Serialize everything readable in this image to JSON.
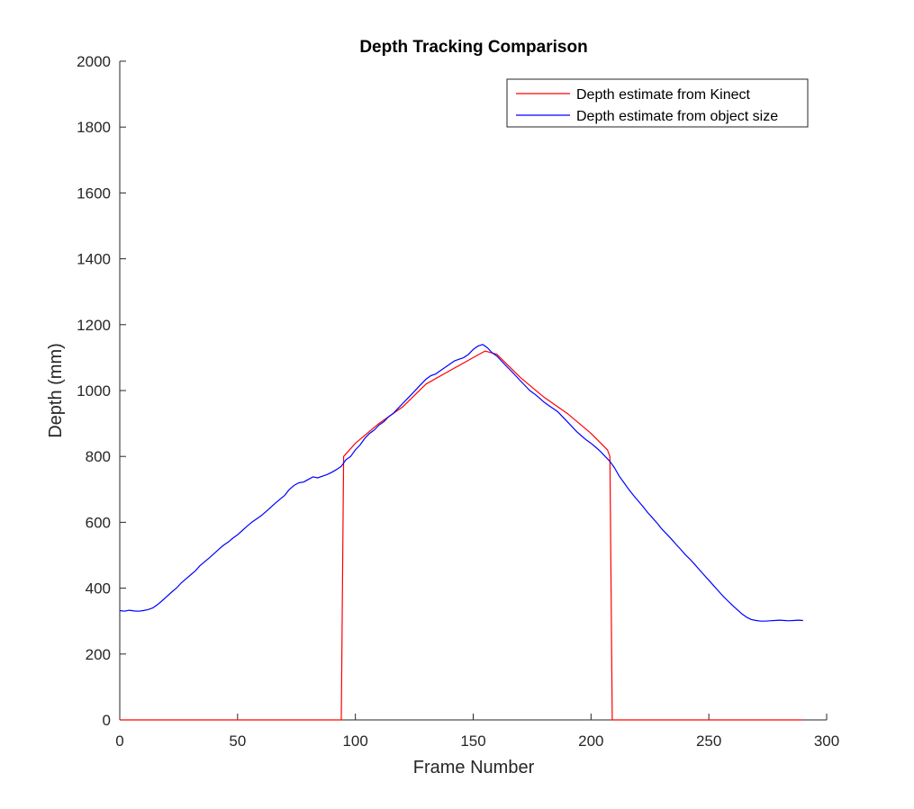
{
  "chart_data": {
    "type": "line",
    "title": "Depth Tracking Comparison",
    "xlabel": "Frame Number",
    "ylabel": "Depth (mm)",
    "xlim": [
      0,
      300
    ],
    "ylim": [
      0,
      2000
    ],
    "xticks": [
      0,
      50,
      100,
      150,
      200,
      250,
      300
    ],
    "yticks": [
      0,
      200,
      400,
      600,
      800,
      1000,
      1200,
      1400,
      1600,
      1800,
      2000
    ],
    "grid": false,
    "legend_position": "top-right",
    "series": [
      {
        "name": "Depth estimate from Kinect",
        "color": "#ff0000",
        "x": [
          0,
          94,
          95,
          100,
          110,
          120,
          130,
          140,
          150,
          155,
          160,
          170,
          180,
          190,
          200,
          207,
          208,
          209,
          290
        ],
        "y": [
          0,
          0,
          800,
          840,
          900,
          950,
          1020,
          1060,
          1100,
          1120,
          1110,
          1040,
          980,
          930,
          870,
          820,
          800,
          0,
          0
        ]
      },
      {
        "name": "Depth estimate from object size",
        "color": "#0000ff",
        "x": [
          0,
          2,
          4,
          6,
          8,
          10,
          12,
          14,
          16,
          18,
          20,
          22,
          24,
          26,
          28,
          30,
          32,
          34,
          36,
          38,
          40,
          42,
          44,
          46,
          48,
          50,
          52,
          54,
          56,
          58,
          60,
          62,
          64,
          66,
          68,
          70,
          72,
          74,
          76,
          78,
          80,
          82,
          84,
          86,
          88,
          90,
          92,
          94,
          96,
          98,
          100,
          102,
          104,
          106,
          108,
          110,
          112,
          114,
          116,
          118,
          120,
          122,
          124,
          126,
          128,
          130,
          132,
          134,
          136,
          138,
          140,
          142,
          144,
          146,
          148,
          150,
          152,
          154,
          156,
          158,
          160,
          162,
          164,
          166,
          168,
          170,
          172,
          174,
          176,
          178,
          180,
          182,
          184,
          186,
          188,
          190,
          192,
          194,
          196,
          198,
          200,
          202,
          204,
          206,
          208,
          210,
          212,
          214,
          216,
          218,
          220,
          222,
          224,
          226,
          228,
          230,
          232,
          234,
          236,
          238,
          240,
          242,
          244,
          246,
          248,
          250,
          252,
          254,
          256,
          258,
          260,
          262,
          264,
          266,
          268,
          270,
          272,
          274,
          276,
          278,
          280,
          282,
          284,
          286,
          288,
          290
        ],
        "y": [
          332,
          330,
          333,
          331,
          330,
          332,
          335,
          340,
          350,
          362,
          375,
          388,
          400,
          415,
          428,
          440,
          452,
          468,
          480,
          492,
          505,
          518,
          530,
          540,
          552,
          562,
          575,
          588,
          600,
          610,
          620,
          632,
          645,
          658,
          670,
          682,
          700,
          712,
          720,
          722,
          730,
          738,
          735,
          740,
          745,
          752,
          760,
          770,
          790,
          800,
          820,
          835,
          855,
          870,
          880,
          895,
          905,
          920,
          930,
          945,
          960,
          975,
          990,
          1005,
          1020,
          1035,
          1045,
          1050,
          1060,
          1070,
          1080,
          1090,
          1095,
          1100,
          1110,
          1125,
          1135,
          1140,
          1130,
          1115,
          1105,
          1090,
          1075,
          1060,
          1045,
          1030,
          1015,
          1000,
          990,
          978,
          965,
          955,
          945,
          935,
          920,
          905,
          890,
          875,
          862,
          850,
          840,
          828,
          815,
          800,
          785,
          765,
          740,
          720,
          700,
          682,
          665,
          648,
          630,
          614,
          598,
          580,
          565,
          550,
          534,
          518,
          502,
          488,
          472,
          456,
          440,
          424,
          408,
          392,
          376,
          362,
          348,
          335,
          322,
          312,
          305,
          302,
          300,
          300,
          301,
          302,
          303,
          302,
          301,
          302,
          303,
          302
        ]
      }
    ]
  }
}
